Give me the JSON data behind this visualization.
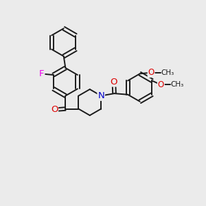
{
  "background_color": "#ebebeb",
  "bond_color": "#1a1a1a",
  "bond_width": 1.4,
  "atom_colors": {
    "F": "#ee00ee",
    "O": "#dd0000",
    "N": "#0000cc",
    "C": "#1a1a1a"
  },
  "font_size": 8.5,
  "fig_size": [
    3.0,
    3.0
  ],
  "dpi": 100,
  "xlim": [
    0.0,
    8.5
  ],
  "ylim": [
    -0.5,
    8.5
  ]
}
